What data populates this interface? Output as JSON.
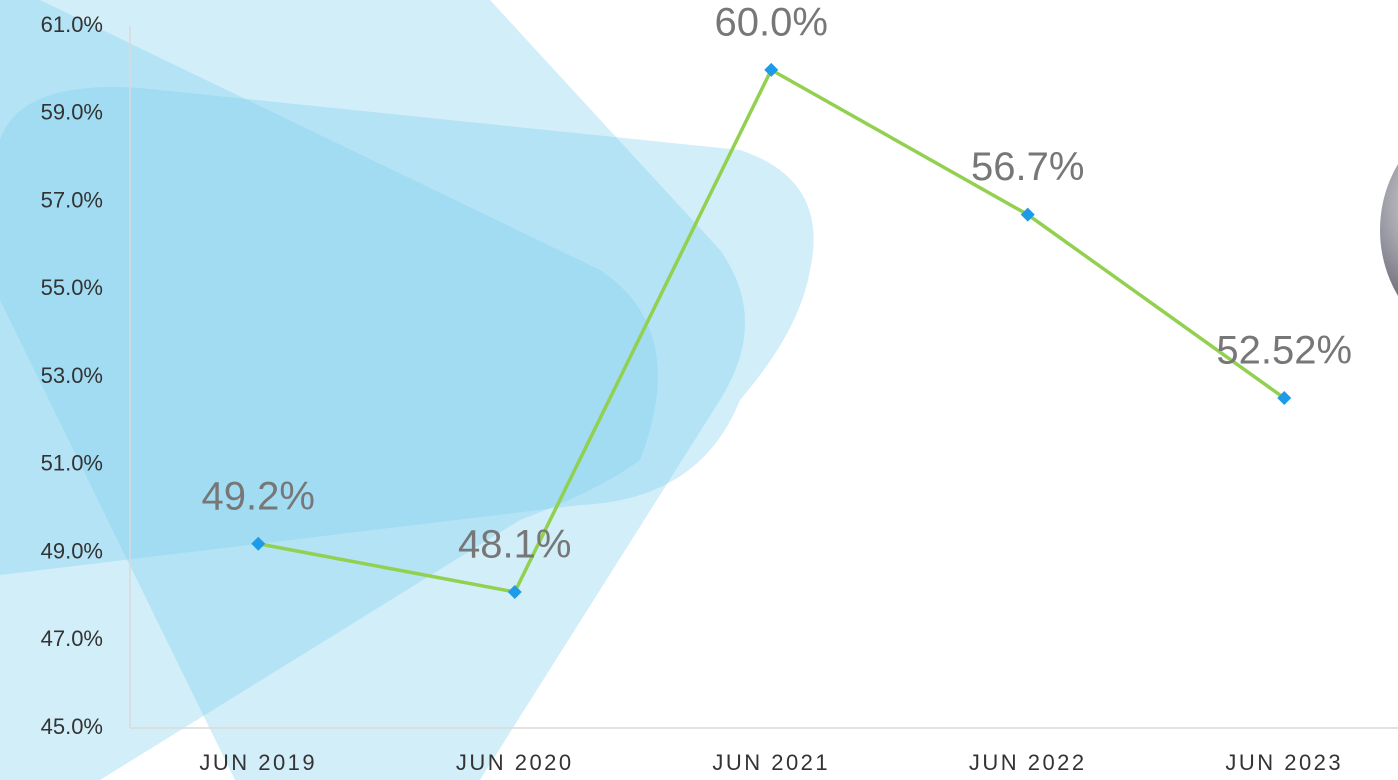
{
  "chart_data": {
    "type": "line",
    "categories": [
      "JUN 2019",
      "JUN 2020",
      "JUN 2021",
      "JUN 2022",
      "JUN 2023"
    ],
    "series": [
      {
        "color": "#92d050",
        "marker_color": "#1e9be8",
        "values": [
          49.2,
          48.1,
          60.0,
          56.7,
          52.52
        ],
        "value_labels": [
          "49.2%",
          "48.1%",
          "60.0%",
          "56.7%",
          "52.52%"
        ]
      }
    ],
    "ylim": [
      45,
      61
    ],
    "yticks": [
      {
        "value": 45,
        "label": "45.0%"
      },
      {
        "value": 47,
        "label": "47.0%"
      },
      {
        "value": 49,
        "label": "49.0%"
      },
      {
        "value": 51,
        "label": "51.0%"
      },
      {
        "value": 53,
        "label": "53.0%"
      },
      {
        "value": 55,
        "label": "55.0%"
      },
      {
        "value": 57,
        "label": "57.0%"
      },
      {
        "value": 59,
        "label": "59.0%"
      },
      {
        "value": 61,
        "label": "61.0%"
      }
    ],
    "grid": false
  }
}
